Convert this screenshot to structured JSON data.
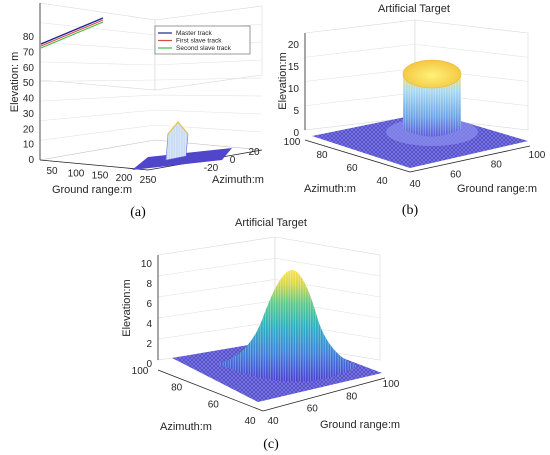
{
  "chart_data": [
    {
      "panel": "(a)",
      "type": "line",
      "title": "",
      "xlabel": "Ground range:m",
      "ylabel": "Azimuth:m",
      "zlabel": "Elevation: m",
      "xticks": [
        "50",
        "100",
        "150",
        "200",
        "250"
      ],
      "yticks": [
        "-20",
        "0",
        "20"
      ],
      "zticks": [
        "0",
        "10",
        "20",
        "30",
        "40",
        "50",
        "60",
        "70",
        "80"
      ],
      "zlim": [
        0,
        80
      ],
      "legend": "top-right",
      "series": [
        {
          "name": "Master track",
          "color": "#1f1f8f"
        },
        {
          "name": "First slave track",
          "color": "#d94a4a"
        },
        {
          "name": "Second slave track",
          "color": "#3fbf3f"
        }
      ],
      "target": {
        "peak_elevation": 14
      }
    },
    {
      "panel": "(b)",
      "type": "surface",
      "title": "Artificial Target",
      "xlabel": "Ground range:m",
      "ylabel": "Azimuth:m",
      "zlabel": "Elevation:m",
      "xticks": [
        "40",
        "60",
        "80",
        "100"
      ],
      "yticks": [
        "100",
        "80",
        "60",
        "40"
      ],
      "zticks": [
        "0",
        "5",
        "10",
        "15",
        "20"
      ],
      "zlim": [
        0,
        20
      ],
      "shape": "cylinder",
      "peak_elevation": 16
    },
    {
      "panel": "(c)",
      "type": "surface",
      "title": "Artificial Target",
      "xlabel": "Ground range:m",
      "ylabel": "Azimuth:m",
      "zlabel": "Elevation:m",
      "xticks": [
        "40",
        "60",
        "80",
        "100"
      ],
      "yticks": [
        "100",
        "80",
        "60",
        "40"
      ],
      "zticks": [
        "0",
        "2",
        "4",
        "6",
        "8",
        "10"
      ],
      "zlim": [
        0,
        10
      ],
      "shape": "cone",
      "peak_elevation": 9
    }
  ]
}
